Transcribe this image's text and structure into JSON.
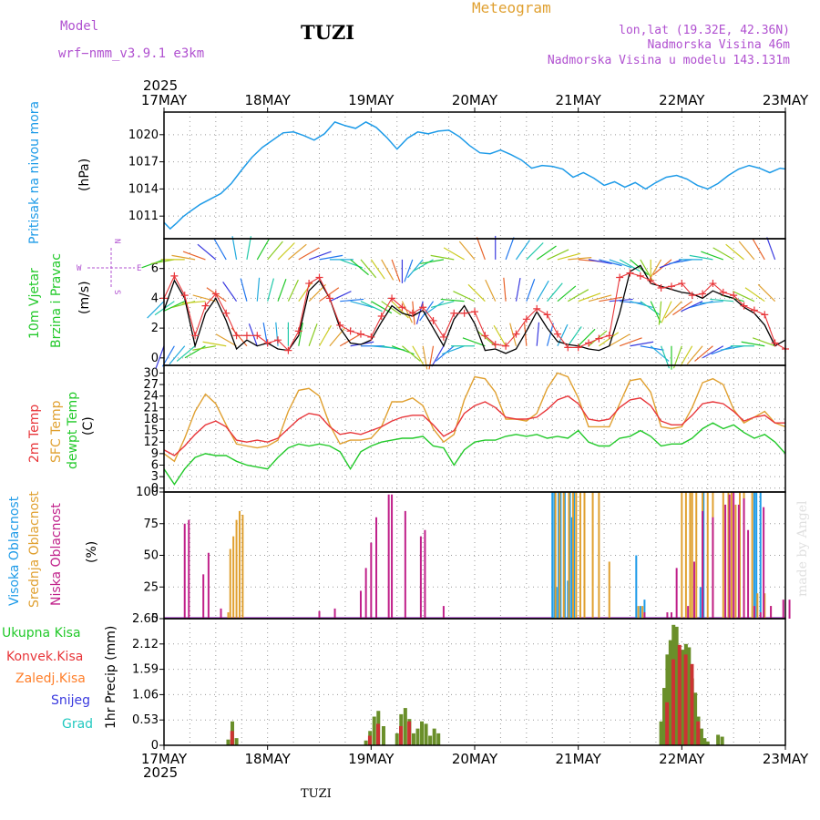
{
  "header": {
    "model_label": "Model",
    "model_name": "wrf−nmm_v3.9.1 e3km",
    "station": "TUZI",
    "title": "Meteogram",
    "coords": "lon,lat (19.32E, 42.36N)",
    "elevation": "Nadmorska Visina 46m",
    "model_elevation": "Nadmorska Visina u modelu 143.131m",
    "footer_station": "TUZI",
    "watermark": "made by Angel"
  },
  "colors": {
    "pressure": "#1e9be8",
    "temp2m": "#e8363a",
    "sfc": "#e0a030",
    "dew": "#22c92a",
    "high": "#1e9be8",
    "mid": "#e0a030",
    "low": "#c0208a",
    "wind": "#22c92a",
    "precip_total": "#6a8f2a",
    "precip_conv": "#cc3333",
    "frozen": "#ff7f2a",
    "snow": "#3a3adf",
    "hail": "#22c9c0"
  },
  "chart_data": [
    {
      "type": "line",
      "id": "pressure",
      "title": "Pritisak na nivou mora",
      "ylabel": "(hPa)",
      "ylim": [
        1008.5,
        1022.5
      ],
      "yticks": [
        1011,
        1014,
        1017,
        1020
      ],
      "x_days": [
        0,
        6
      ],
      "x": [
        0.0,
        0.06,
        0.12,
        0.18,
        0.25,
        0.35,
        0.45,
        0.55,
        0.65,
        0.75,
        0.85,
        0.95,
        1.05,
        1.15,
        1.25,
        1.35,
        1.45,
        1.55,
        1.65,
        1.75,
        1.85,
        1.95,
        2.05,
        2.15,
        2.25,
        2.35,
        2.45,
        2.55,
        2.65,
        2.75,
        2.85,
        2.95,
        3.05,
        3.15,
        3.25,
        3.35,
        3.45,
        3.55,
        3.65,
        3.75,
        3.85,
        3.95,
        4.05,
        4.15,
        4.25,
        4.35,
        4.45,
        4.55,
        4.65,
        4.75,
        4.85,
        4.95,
        5.05,
        5.15,
        5.25,
        5.35,
        5.45,
        5.55,
        5.65,
        5.75,
        5.85,
        5.95,
        6.0
      ],
      "values": [
        1010.3,
        1009.6,
        1010.2,
        1010.9,
        1011.5,
        1012.3,
        1012.9,
        1013.5,
        1014.6,
        1016.1,
        1017.5,
        1018.6,
        1019.4,
        1020.2,
        1020.3,
        1019.9,
        1019.4,
        1020.1,
        1021.4,
        1021.0,
        1020.7,
        1021.4,
        1020.8,
        1019.7,
        1018.4,
        1019.6,
        1020.3,
        1020.1,
        1020.4,
        1020.5,
        1019.8,
        1018.8,
        1018.0,
        1017.9,
        1018.3,
        1017.8,
        1017.2,
        1016.3,
        1016.6,
        1016.5,
        1016.2,
        1015.3,
        1015.8,
        1015.2,
        1014.4,
        1014.8,
        1014.2,
        1014.7,
        1014.0,
        1014.7,
        1015.3,
        1015.5,
        1015.1,
        1014.4,
        1014.0,
        1014.6,
        1015.5,
        1016.2,
        1016.6,
        1016.3,
        1015.8,
        1016.3,
        1016.2
      ]
    },
    {
      "type": "line",
      "id": "wind",
      "title": "10m Vjetar",
      "subtitle": "Brzina i Pravac",
      "ylabel": "(m/s)",
      "compass": [
        "W",
        "E",
        "N",
        "S"
      ],
      "ylim": [
        -0.5,
        8.0
      ],
      "yticks": [
        0,
        2,
        4,
        6
      ],
      "x_days": [
        0,
        6
      ],
      "x": [
        0.0,
        0.1,
        0.2,
        0.3,
        0.4,
        0.5,
        0.6,
        0.7,
        0.8,
        0.9,
        1.0,
        1.1,
        1.2,
        1.3,
        1.4,
        1.5,
        1.6,
        1.7,
        1.8,
        1.9,
        2.0,
        2.1,
        2.2,
        2.3,
        2.4,
        2.5,
        2.6,
        2.7,
        2.8,
        2.9,
        3.0,
        3.1,
        3.2,
        3.3,
        3.4,
        3.5,
        3.6,
        3.7,
        3.8,
        3.9,
        4.0,
        4.1,
        4.2,
        4.3,
        4.4,
        4.5,
        4.6,
        4.7,
        4.8,
        4.9,
        5.0,
        5.1,
        5.2,
        5.3,
        5.4,
        5.5,
        5.6,
        5.7,
        5.8,
        5.9,
        6.0
      ],
      "speed": [
        3.2,
        5.2,
        4.0,
        0.8,
        3.0,
        4.0,
        2.5,
        0.6,
        1.2,
        0.8,
        1.0,
        0.6,
        0.5,
        1.5,
        4.5,
        5.2,
        4.0,
        2.0,
        1.0,
        0.9,
        1.2,
        2.4,
        3.5,
        3.0,
        2.8,
        3.2,
        2.0,
        0.8,
        2.6,
        3.5,
        2.3,
        0.5,
        0.6,
        0.3,
        0.6,
        1.8,
        3.1,
        2.0,
        1.1,
        0.9,
        0.8,
        0.6,
        0.5,
        0.8,
        3.0,
        5.8,
        6.2,
        5.0,
        4.8,
        4.6,
        4.4,
        4.3,
        4.0,
        4.5,
        4.2,
        4.0,
        3.4,
        3.0,
        2.2,
        0.8,
        1.2
      ],
      "gust": [
        4.0,
        5.5,
        4.2,
        1.5,
        3.5,
        4.3,
        3.0,
        1.5,
        1.5,
        1.5,
        1.0,
        1.2,
        0.5,
        1.8,
        5.0,
        5.4,
        4.0,
        2.2,
        1.8,
        1.6,
        1.4,
        2.8,
        4.0,
        3.4,
        3.0,
        3.4,
        2.5,
        1.4,
        3.0,
        3.0,
        3.1,
        1.5,
        0.9,
        0.8,
        1.6,
        2.6,
        3.3,
        2.9,
        1.6,
        0.7,
        0.7,
        1.0,
        1.3,
        1.5,
        5.4,
        5.7,
        5.5,
        5.2,
        4.7,
        4.8,
        5.0,
        4.2,
        4.3,
        5.0,
        4.4,
        4.2,
        3.5,
        3.2,
        2.9,
        1.0,
        0.6
      ],
      "arrow_rows": [
        0.8,
        3.8,
        6.6
      ],
      "arrow_angles": [
        200,
        210,
        220,
        230,
        240,
        260,
        280,
        300,
        320,
        340,
        350,
        355,
        0,
        10,
        20,
        30,
        40,
        60,
        80,
        90,
        95,
        100,
        110,
        130,
        150,
        170,
        190,
        210,
        230,
        250,
        270,
        290,
        310,
        330,
        345,
        355,
        5,
        15,
        25,
        35,
        45,
        50,
        55,
        60,
        70,
        80,
        100,
        130,
        160,
        180,
        200,
        210,
        220,
        230,
        240,
        250,
        260,
        270,
        280,
        290,
        300
      ],
      "series_names": [
        "speed",
        "gust"
      ]
    },
    {
      "type": "line",
      "id": "temperature",
      "title": "2m Temp",
      "series_labels": [
        "2m Temp",
        "SFC Temp",
        "dewpt Temp"
      ],
      "ylabel": "(C)",
      "ylim": [
        -1.0,
        32.0
      ],
      "yticks": [
        0,
        3,
        6,
        9,
        12,
        15,
        18,
        21,
        24,
        27,
        30
      ],
      "x_days": [
        0,
        6
      ],
      "x": [
        0.0,
        0.1,
        0.2,
        0.3,
        0.4,
        0.5,
        0.6,
        0.7,
        0.8,
        0.9,
        1.0,
        1.1,
        1.2,
        1.3,
        1.4,
        1.5,
        1.6,
        1.7,
        1.8,
        1.9,
        2.0,
        2.1,
        2.2,
        2.3,
        2.4,
        2.5,
        2.6,
        2.7,
        2.8,
        2.9,
        3.0,
        3.1,
        3.2,
        3.3,
        3.4,
        3.5,
        3.6,
        3.7,
        3.8,
        3.9,
        4.0,
        4.1,
        4.2,
        4.3,
        4.4,
        4.5,
        4.6,
        4.7,
        4.8,
        4.9,
        5.0,
        5.1,
        5.2,
        5.3,
        5.4,
        5.5,
        5.6,
        5.7,
        5.8,
        5.9,
        6.0
      ],
      "temp2m": [
        10.0,
        8.5,
        11.0,
        14.0,
        16.5,
        17.5,
        16.0,
        12.5,
        12.0,
        12.5,
        12.0,
        13.0,
        15.5,
        18.0,
        19.5,
        19.0,
        16.0,
        14.0,
        14.5,
        14.0,
        15.0,
        16.0,
        17.5,
        18.5,
        19.0,
        19.0,
        16.5,
        13.5,
        15.0,
        19.5,
        21.5,
        22.5,
        21.0,
        18.5,
        18.0,
        18.0,
        18.5,
        20.5,
        23.0,
        24.0,
        22.0,
        18.0,
        17.5,
        18.0,
        21.0,
        23.0,
        23.5,
        21.5,
        17.5,
        16.5,
        16.5,
        19.0,
        22.0,
        22.5,
        22.0,
        20.0,
        17.5,
        18.5,
        19.0,
        17.0,
        17.0
      ],
      "sfc": [
        9.0,
        7.0,
        13.0,
        20.0,
        24.5,
        22.0,
        16.5,
        11.5,
        11.0,
        10.5,
        11.0,
        12.5,
        20.0,
        25.5,
        26.0,
        24.0,
        16.5,
        11.5,
        12.5,
        12.5,
        13.0,
        16.0,
        22.5,
        22.5,
        23.5,
        21.5,
        15.5,
        12.0,
        14.0,
        23.0,
        29.0,
        28.5,
        25.0,
        18.0,
        18.0,
        17.5,
        19.5,
        26.0,
        30.0,
        29.0,
        23.5,
        16.0,
        16.0,
        16.0,
        22.0,
        28.0,
        28.5,
        25.0,
        16.0,
        15.5,
        16.0,
        21.0,
        27.5,
        28.5,
        27.0,
        20.5,
        17.0,
        18.5,
        20.0,
        17.0,
        16.0
      ],
      "dew": [
        5.0,
        1.0,
        5.0,
        8.0,
        9.0,
        8.5,
        8.5,
        7.0,
        6.0,
        5.5,
        5.0,
        8.0,
        10.5,
        11.5,
        11.0,
        11.5,
        11.0,
        9.5,
        5.0,
        9.5,
        11.0,
        12.0,
        12.5,
        13.0,
        13.0,
        13.5,
        11.0,
        10.5,
        6.0,
        10.0,
        12.0,
        12.5,
        12.5,
        13.5,
        14.0,
        13.5,
        14.0,
        13.0,
        13.5,
        13.0,
        15.0,
        12.0,
        11.0,
        11.0,
        13.0,
        13.5,
        15.0,
        13.5,
        11.0,
        11.5,
        11.5,
        13.0,
        15.5,
        17.0,
        15.5,
        16.5,
        14.5,
        13.0,
        14.0,
        12.0,
        9.0
      ]
    },
    {
      "type": "bar",
      "id": "clouds",
      "titles": [
        "Visoka Oblacnost",
        "Srednja Oblacnost",
        "Niska Oblacnost"
      ],
      "ylabel": "(%)",
      "ylim": [
        0,
        100
      ],
      "yticks": [
        0,
        25,
        50,
        75,
        100
      ],
      "x_days": [
        0,
        6
      ],
      "series": [
        {
          "name": "high",
          "x": [
            3.75,
            3.77,
            3.79,
            3.81,
            3.83,
            3.87,
            3.9,
            3.92,
            3.94,
            3.96,
            4.56,
            4.6,
            4.64,
            5.18,
            5.21,
            5.7,
            5.72,
            5.76
          ],
          "values": [
            100,
            100,
            25,
            100,
            100,
            100,
            30,
            100,
            80,
            100,
            50,
            10,
            15,
            25,
            100,
            100,
            100,
            100
          ]
        },
        {
          "name": "mid",
          "x": [
            0.62,
            0.64,
            0.67,
            0.7,
            0.73,
            0.76,
            3.78,
            3.82,
            3.86,
            3.91,
            3.95,
            3.98,
            4.02,
            4.06,
            4.14,
            4.2,
            4.3,
            4.58,
            4.62,
            5.0,
            5.04,
            5.08,
            5.1,
            5.14,
            5.2,
            5.25,
            5.3,
            5.4,
            5.45,
            5.48,
            5.52,
            5.56,
            5.6,
            5.68,
            5.73,
            5.8,
            5.86
          ],
          "values": [
            5,
            55,
            65,
            78,
            85,
            82,
            100,
            100,
            100,
            100,
            100,
            100,
            100,
            100,
            100,
            100,
            45,
            10,
            10,
            100,
            100,
            100,
            100,
            100,
            100,
            100,
            100,
            100,
            100,
            100,
            90,
            100,
            100,
            100,
            20,
            20,
            10
          ]
        },
        {
          "name": "low",
          "x": [
            0.2,
            0.24,
            0.38,
            0.43,
            0.55,
            1.5,
            1.65,
            1.9,
            1.95,
            2.0,
            2.05,
            2.17,
            2.2,
            2.33,
            2.48,
            2.52,
            2.7,
            4.64,
            4.86,
            4.9,
            4.95,
            5.06,
            5.12,
            5.2,
            5.3,
            5.42,
            5.46,
            5.5,
            5.55,
            5.6,
            5.64,
            5.7,
            5.76,
            5.79,
            5.86,
            5.98,
            6.04
          ],
          "values": [
            75,
            78,
            35,
            52,
            8,
            6,
            8,
            22,
            40,
            60,
            80,
            98,
            98,
            85,
            65,
            70,
            10,
            5,
            5,
            5,
            40,
            10,
            45,
            85,
            80,
            90,
            98,
            100,
            90,
            95,
            70,
            10,
            5,
            88,
            10,
            15,
            15
          ]
        }
      ]
    },
    {
      "type": "bar",
      "id": "precip",
      "titles": [
        "Ukupna Kisa",
        "Konvek.Kisa",
        "Zaledj.Kisa",
        "Snijeg",
        "Grad"
      ],
      "ylabel": "1hr Precip (mm)",
      "ylim": [
        0,
        2.65
      ],
      "yticks": [
        0,
        0.53,
        1.06,
        1.59,
        2.12,
        2.65
      ],
      "x_days": [
        0,
        6
      ],
      "series": [
        {
          "name": "total",
          "x": [
            0.62,
            0.66,
            0.7,
            1.95,
            1.99,
            2.03,
            2.07,
            2.12,
            2.25,
            2.29,
            2.33,
            2.37,
            2.41,
            2.45,
            2.49,
            2.53,
            2.57,
            2.61,
            2.65,
            4.8,
            4.83,
            4.86,
            4.89,
            4.92,
            4.95,
            4.98,
            5.01,
            5.04,
            5.07,
            5.1,
            5.13,
            5.16,
            5.19,
            5.22,
            5.25,
            5.35,
            5.39
          ],
          "values": [
            0.12,
            0.5,
            0.15,
            0.1,
            0.3,
            0.6,
            0.72,
            0.4,
            0.25,
            0.65,
            0.78,
            0.55,
            0.25,
            0.35,
            0.5,
            0.45,
            0.2,
            0.35,
            0.25,
            0.5,
            1.2,
            1.9,
            2.2,
            2.52,
            2.48,
            1.5,
            2.0,
            2.12,
            2.05,
            1.4,
            1.1,
            0.6,
            0.35,
            0.15,
            0.08,
            0.22,
            0.18
          ]
        },
        {
          "name": "convective",
          "x": [
            0.64,
            1.97,
            2.05,
            2.27,
            2.35,
            4.84,
            4.9,
            4.96,
            5.02,
            5.08,
            5.14
          ],
          "values": [
            0.3,
            0.2,
            0.45,
            0.4,
            0.5,
            0.9,
            1.8,
            2.1,
            1.9,
            1.7,
            0.5
          ]
        }
      ]
    }
  ],
  "x_axis": {
    "labels": [
      "17MAY",
      "18MAY",
      "19MAY",
      "20MAY",
      "21MAY",
      "22MAY",
      "23MAY"
    ],
    "year": "2025"
  }
}
